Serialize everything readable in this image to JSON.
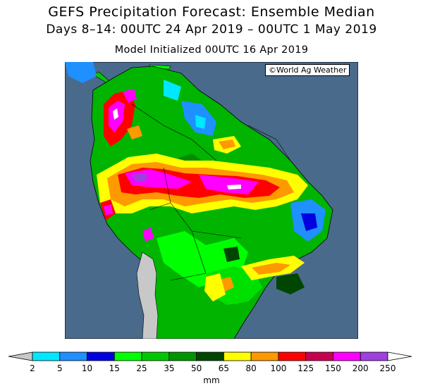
{
  "header": {
    "title": "GEFS Precipitation Forecast: Ensemble Median",
    "period": "Days 8–14: 00UTC 24 Apr 2019 – 00UTC 1 May 2019",
    "init": "Model Initialized 00UTC 16 Apr 2019"
  },
  "credit": "©World Ag Weather",
  "legend": {
    "unit": "mm",
    "ticks": [
      "2",
      "5",
      "10",
      "15",
      "25",
      "35",
      "50",
      "65",
      "80",
      "100",
      "125",
      "150",
      "200",
      "250"
    ],
    "colors": [
      "#00e8ff",
      "#1e90ff",
      "#0000e0",
      "#00ff00",
      "#00c800",
      "#009600",
      "#004600",
      "#ffff00",
      "#ff9900",
      "#ff0000",
      "#c80050",
      "#ff00ff",
      "#a040e0"
    ],
    "low_color": "#c8c8c8",
    "high_color": "#ffffff"
  },
  "map": {
    "ocean_color": "#4a6a8c",
    "dry_land_color": "#c8c8c8"
  }
}
